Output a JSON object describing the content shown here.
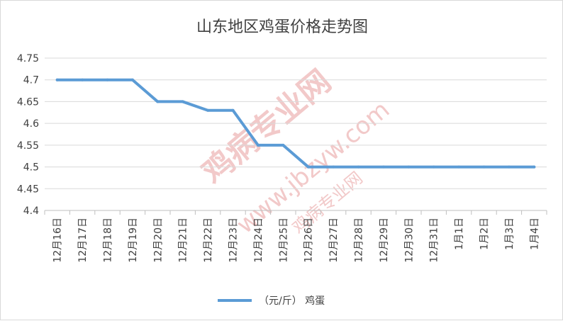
{
  "watermark": {
    "main": "鸡病专业网",
    "url": "www.jbzyw.com",
    "sub": "鸡病专业网",
    "color": "#f3cccc"
  },
  "chart_data": {
    "type": "line",
    "title": "山东地区鸡蛋价格走势图",
    "categories": [
      "12月16日",
      "12月17日",
      "12月18日",
      "12月19日",
      "12月20日",
      "12月21日",
      "12月22日",
      "12月23日",
      "12月24日",
      "12月25日",
      "12月26日",
      "12月27日",
      "12月28日",
      "12月29日",
      "12月30日",
      "12月31日",
      "1月1日",
      "1月2日",
      "1月3日",
      "1月4日"
    ],
    "series": [
      {
        "name": "（元/斤） 鸡蛋",
        "values": [
          4.7,
          4.7,
          4.7,
          4.7,
          4.65,
          4.65,
          4.63,
          4.63,
          4.55,
          4.55,
          4.5,
          4.5,
          4.5,
          4.5,
          4.5,
          4.5,
          4.5,
          4.5,
          4.5,
          4.5
        ],
        "color": "#5b9bd5"
      }
    ],
    "ylim": [
      4.4,
      4.75
    ],
    "yticks": [
      "4.4",
      "4.45",
      "4.5",
      "4.55",
      "4.6",
      "4.65",
      "4.7",
      "4.75"
    ],
    "grid": true,
    "legend": "bottom",
    "xlabel": "",
    "ylabel": ""
  }
}
